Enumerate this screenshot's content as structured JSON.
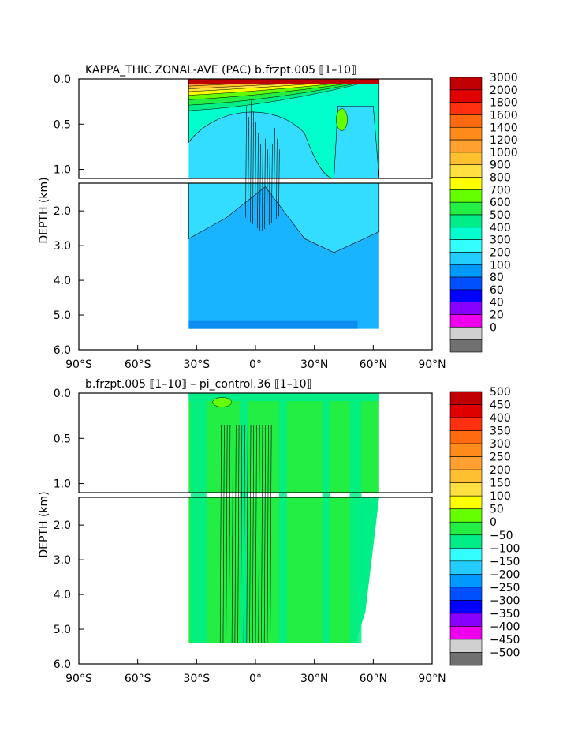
{
  "chart_data": [
    {
      "type": "heatmap",
      "title": "KAPPA_THIC ZONAL-AVE (PAC) b.frzpt.005 ⟦1–10⟧",
      "ylabel": "DEPTH (km)",
      "xlabel": "",
      "x_ticks": [
        "90°S",
        "60°S",
        "30°S",
        "0°",
        "30°N",
        "60°N",
        "90°N"
      ],
      "x_values": [
        -90,
        -60,
        -30,
        0,
        30,
        60,
        90
      ],
      "xlim": [
        -90,
        90
      ],
      "y_ticks_upper": [
        "0.0",
        "0.5",
        "1.0"
      ],
      "y_values_upper": [
        0.0,
        0.5,
        1.0
      ],
      "y_ticks_lower": [
        "2.0",
        "3.0",
        "4.0",
        "5.0",
        "6.0"
      ],
      "y_values_lower": [
        2.0,
        3.0,
        4.0,
        5.0,
        6.0
      ],
      "ylim_upper": [
        0.0,
        1.1
      ],
      "ylim_lower": [
        1.2,
        6.0
      ],
      "data_extent": {
        "lat_min": -34,
        "lat_max": 63,
        "max_depth_km": 5.4
      },
      "colorbar": {
        "labels": [
          "3000",
          "2000",
          "1800",
          "1600",
          "1400",
          "1200",
          "1000",
          "900",
          "800",
          "700",
          "600",
          "500",
          "400",
          "300",
          "200",
          "100",
          "80",
          "60",
          "40",
          "20",
          "0"
        ],
        "colors": [
          "#c00000",
          "#e00000",
          "#ff3010",
          "#ff6a10",
          "#ff8c1a",
          "#ffa030",
          "#ffc030",
          "#ffe040",
          "#ffff00",
          "#66ff00",
          "#22ee44",
          "#00ee88",
          "#00ffcc",
          "#33ffff",
          "#22ccff",
          "#0099ff",
          "#0050ff",
          "#0000ff",
          "#8800ff",
          "#ee00ee",
          "#d0d0d0",
          "#707070"
        ]
      }
    },
    {
      "type": "heatmap",
      "title": "b.frzpt.005 ⟦1–10⟧ – pi_control.36 ⟦1–10⟧",
      "ylabel": "DEPTH (km)",
      "xlabel": "",
      "x_ticks": [
        "90°S",
        "60°S",
        "30°S",
        "0°",
        "30°N",
        "60°N",
        "90°N"
      ],
      "x_values": [
        -90,
        -60,
        -30,
        0,
        30,
        60,
        90
      ],
      "xlim": [
        -90,
        90
      ],
      "y_ticks_upper": [
        "0.0",
        "0.5",
        "1.0"
      ],
      "y_values_upper": [
        0.0,
        0.5,
        1.0
      ],
      "y_ticks_lower": [
        "2.0",
        "3.0",
        "4.0",
        "5.0",
        "6.0"
      ],
      "y_values_lower": [
        2.0,
        3.0,
        4.0,
        5.0,
        6.0
      ],
      "ylim_upper": [
        0.0,
        1.1
      ],
      "ylim_lower": [
        1.2,
        6.0
      ],
      "data_extent": {
        "lat_min": -34,
        "lat_max": 63,
        "max_depth_km": 5.4
      },
      "colorbar": {
        "labels": [
          "500",
          "450",
          "400",
          "350",
          "300",
          "250",
          "200",
          "150",
          "100",
          "50",
          "0",
          "−50",
          "−100",
          "−150",
          "−200",
          "−250",
          "−300",
          "−350",
          "−400",
          "−450",
          "−500"
        ],
        "colors": [
          "#c00000",
          "#e00000",
          "#ff3010",
          "#ff6a10",
          "#ff8c1a",
          "#ffa030",
          "#ffc030",
          "#ffe040",
          "#ffff00",
          "#66ff00",
          "#22ee44",
          "#00ee88",
          "#33ffff",
          "#22ccff",
          "#0099ff",
          "#0050ff",
          "#0000ff",
          "#8800ff",
          "#ee00ee",
          "#d0d0d0",
          "#707070"
        ]
      }
    }
  ]
}
